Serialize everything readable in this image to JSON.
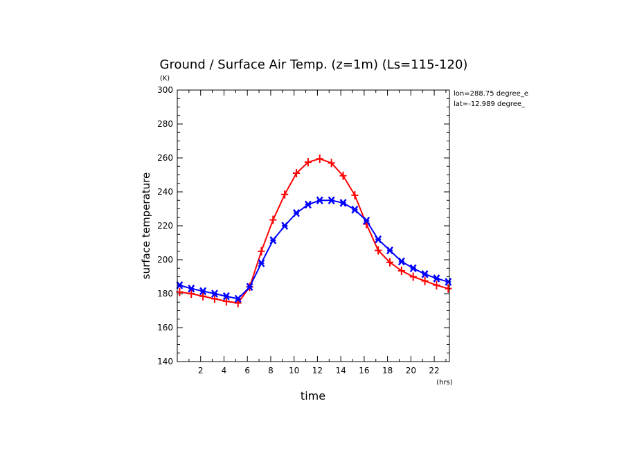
{
  "chart_data": {
    "type": "line",
    "title": "Ground / Surface Air Temp. (z=1m) (Ls=115-120)",
    "xlabel": "time",
    "ylabel": "surface temperature",
    "x_unit": "(hrs)",
    "y_unit": "(K)",
    "xlim": [
      0,
      23.3
    ],
    "ylim": [
      140,
      300
    ],
    "x_ticks": [
      2,
      4,
      6,
      8,
      10,
      12,
      14,
      16,
      18,
      20,
      22
    ],
    "y_ticks": [
      140,
      160,
      180,
      200,
      220,
      240,
      260,
      280,
      300
    ],
    "annotations": [
      "lon=288.75 degree_e",
      "lat=-12.989 degree_"
    ],
    "x": [
      0.2,
      1.2,
      2.2,
      3.2,
      4.2,
      5.2,
      6.2,
      7.2,
      8.2,
      9.2,
      10.2,
      11.2,
      12.2,
      13.2,
      14.2,
      15.2,
      16.2,
      17.2,
      18.2,
      19.2,
      20.2,
      21.2,
      22.2,
      23.2
    ],
    "series": [
      {
        "color": "#ff0000",
        "marker": "plus",
        "values": [
          181,
          180,
          178.5,
          177,
          175.5,
          174.5,
          184,
          205,
          223.5,
          238.5,
          251,
          257.5,
          259.5,
          257,
          249.5,
          238,
          221,
          205.5,
          198.5,
          193.5,
          190,
          187.5,
          185,
          183
        ]
      },
      {
        "color": "#0000ff",
        "marker": "cross",
        "values": [
          185,
          183,
          181.5,
          180,
          178.5,
          177,
          184,
          198,
          211.5,
          220,
          227.5,
          232.5,
          235,
          235,
          233.5,
          229.5,
          223,
          212,
          205.5,
          199,
          195,
          191.5,
          189,
          187
        ]
      }
    ]
  }
}
